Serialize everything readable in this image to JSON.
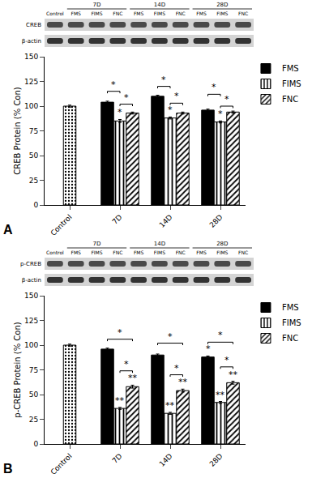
{
  "chart_data": [
    {
      "type": "bar",
      "panel": "A",
      "ylabel": "CREB Protein (% Con)",
      "categories": [
        "Control",
        "7D",
        "14D",
        "28D"
      ],
      "ylim": [
        0,
        150
      ],
      "yticks": [
        0,
        25,
        50,
        75,
        100,
        125,
        150
      ],
      "grid": false,
      "legend": "upper right",
      "blot": {
        "rows": [
          "CREB",
          "β-actin"
        ],
        "lanes": [
          {
            "label": "Control",
            "group": null
          },
          {
            "label": "FMS",
            "group": "7D"
          },
          {
            "label": "FIMS",
            "group": "7D"
          },
          {
            "label": "FNC",
            "group": "7D"
          },
          {
            "label": "FMS",
            "group": "14D"
          },
          {
            "label": "FIMS",
            "group": "14D"
          },
          {
            "label": "FNC",
            "group": "14D"
          },
          {
            "label": "FMS",
            "group": "28D"
          },
          {
            "label": "FIMS",
            "group": "28D"
          },
          {
            "label": "FNC",
            "group": "28D"
          }
        ]
      },
      "series": [
        {
          "name": "Control",
          "color": "#000000",
          "marker": "dots",
          "values": [
            100,
            null,
            null,
            null
          ],
          "errors": [
            1,
            null,
            null,
            null
          ]
        },
        {
          "name": "FMS",
          "color": "#000000",
          "marker": "solid",
          "values": [
            null,
            104,
            110,
            96
          ],
          "errors": [
            null,
            1,
            1,
            1
          ]
        },
        {
          "name": "FIMS",
          "color": "#000000",
          "marker": "vertical_stripes",
          "values": [
            null,
            85,
            88,
            84
          ],
          "errors": [
            null,
            1.5,
            1,
            1
          ]
        },
        {
          "name": "FNC",
          "color": "#000000",
          "marker": "diagonal_stripes",
          "values": [
            null,
            93,
            93,
            94
          ],
          "errors": [
            null,
            1,
            1,
            1
          ]
        }
      ],
      "bar_marks": [
        {
          "category": "7D",
          "series": "FIMS",
          "text": "*"
        },
        {
          "category": "14D",
          "series": "FIMS",
          "text": "*"
        },
        {
          "category": "28D",
          "series": "FIMS",
          "text": "*"
        }
      ],
      "brackets": [
        {
          "category": "7D",
          "from": "FMS",
          "to": "FIMS",
          "y": 115,
          "text": "*"
        },
        {
          "category": "7D",
          "from": "FIMS",
          "to": "FNC",
          "y": 102,
          "text": "*"
        },
        {
          "category": "14D",
          "from": "FMS",
          "to": "FIMS",
          "y": 120,
          "text": "*"
        },
        {
          "category": "14D",
          "from": "FIMS",
          "to": "FNC",
          "y": 103,
          "text": "*"
        },
        {
          "category": "28D",
          "from": "FMS",
          "to": "FIMS",
          "y": 112,
          "text": "*"
        },
        {
          "category": "28D",
          "from": "FIMS",
          "to": "FNC",
          "y": 100,
          "text": "*"
        }
      ]
    },
    {
      "type": "bar",
      "panel": "B",
      "ylabel": "p-CREB Protein (% Con)",
      "categories": [
        "Control",
        "7D",
        "14D",
        "28D"
      ],
      "ylim": [
        0,
        150
      ],
      "yticks": [
        0,
        25,
        50,
        75,
        100,
        125,
        150
      ],
      "grid": false,
      "legend": "upper right",
      "blot": {
        "rows": [
          "p-CREB",
          "β-actin"
        ],
        "lanes": [
          {
            "label": "Control",
            "group": null
          },
          {
            "label": "FMS",
            "group": "7D"
          },
          {
            "label": "FIMS",
            "group": "7D"
          },
          {
            "label": "FNC",
            "group": "7D"
          },
          {
            "label": "FMS",
            "group": "14D"
          },
          {
            "label": "FIMS",
            "group": "14D"
          },
          {
            "label": "FNC",
            "group": "14D"
          },
          {
            "label": "FMS",
            "group": "28D"
          },
          {
            "label": "FIMS",
            "group": "28D"
          },
          {
            "label": "FNC",
            "group": "28D"
          }
        ]
      },
      "series": [
        {
          "name": "Control",
          "color": "#000000",
          "marker": "dots",
          "values": [
            100,
            null,
            null,
            null
          ],
          "errors": [
            1,
            null,
            null,
            null
          ]
        },
        {
          "name": "FMS",
          "color": "#000000",
          "marker": "solid",
          "values": [
            null,
            96,
            90,
            88
          ],
          "errors": [
            null,
            1,
            1,
            1
          ]
        },
        {
          "name": "FIMS",
          "color": "#000000",
          "marker": "vertical_stripes",
          "values": [
            null,
            36,
            31,
            42
          ],
          "errors": [
            null,
            1,
            1,
            1
          ]
        },
        {
          "name": "FNC",
          "color": "#000000",
          "marker": "diagonal_stripes",
          "values": [
            null,
            58,
            54,
            62
          ],
          "errors": [
            null,
            1.5,
            1.5,
            1.5
          ]
        }
      ],
      "bar_marks": [
        {
          "category": "7D",
          "series": "FIMS",
          "text": "**"
        },
        {
          "category": "7D",
          "series": "FNC",
          "text": "**"
        },
        {
          "category": "14D",
          "series": "FIMS",
          "text": "**"
        },
        {
          "category": "14D",
          "series": "FNC",
          "text": "**"
        },
        {
          "category": "28D",
          "series": "FMS",
          "text": "*"
        },
        {
          "category": "28D",
          "series": "FIMS",
          "text": "**"
        },
        {
          "category": "28D",
          "series": "FNC",
          "text": "**"
        }
      ],
      "brackets": [
        {
          "category": "7D",
          "from": "FMS",
          "to": "FNC",
          "y": 106,
          "text": "*"
        },
        {
          "category": "7D",
          "from": "FIMS",
          "to": "FNC",
          "y": 74,
          "text": "*"
        },
        {
          "category": "14D",
          "from": "FMS",
          "to": "FNC",
          "y": 102,
          "text": "*"
        },
        {
          "category": "14D",
          "from": "FIMS",
          "to": "FNC",
          "y": 70,
          "text": "*"
        },
        {
          "category": "28D",
          "from": "FMS",
          "to": "FNC",
          "y": 103,
          "text": "*"
        },
        {
          "category": "28D",
          "from": "FIMS",
          "to": "FNC",
          "y": 78,
          "text": "*"
        }
      ]
    }
  ]
}
